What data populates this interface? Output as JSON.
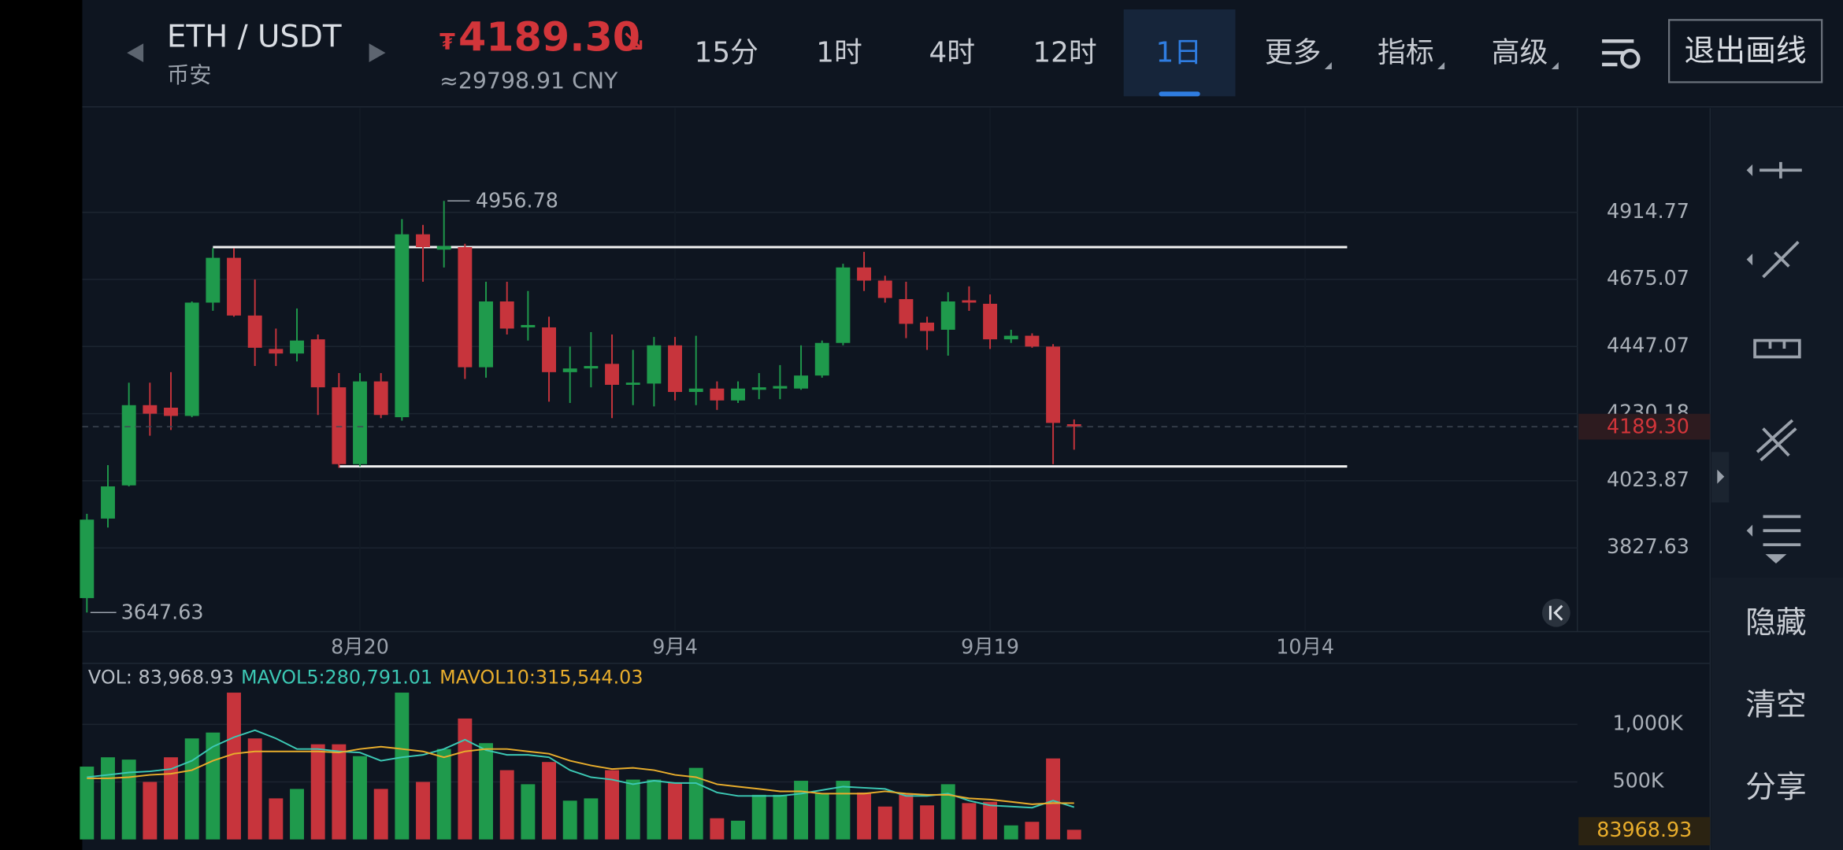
{
  "header": {
    "pair": "ETH / USDT",
    "exchange": "币安",
    "price_symbol": "₮",
    "price": "4189.30",
    "trend_arrow": "↘",
    "price_cny": "≈29798.91 CNY",
    "tabs": [
      "15分",
      "1时",
      "4时",
      "12时",
      "1日",
      "更多",
      "指标",
      "高级"
    ],
    "active_tab": 4,
    "exit_button": "退出画线"
  },
  "sidebar": {
    "buttons": [
      "隐藏",
      "清空",
      "分享"
    ]
  },
  "chart_data": [
    {
      "type": "candlestick",
      "log_scale": true,
      "grid": true,
      "up_color": "#1f9a4c",
      "down_color": "#c7343c",
      "open": [
        3687,
        3912,
        4010,
        4257,
        4249,
        4223,
        4595,
        4751,
        4551,
        4439,
        4424,
        4471,
        4314,
        4074,
        4333,
        4219,
        4835,
        4780,
        4789,
        4379,
        4599,
        4511,
        4511,
        4363,
        4375,
        4390,
        4322,
        4326,
        4451,
        4299,
        4310,
        4272,
        4306,
        4310,
        4310,
        4352,
        4459,
        4717,
        4671,
        4607,
        4527,
        4503,
        4603,
        4591,
        4471,
        4483,
        4447,
        4197
      ],
      "high": [
        3926,
        4071,
        4329,
        4329,
        4363,
        4599,
        4785,
        4785,
        4675,
        4507,
        4575,
        4487,
        4360,
        4360,
        4360,
        4890,
        4869,
        4956.78,
        4801,
        4667,
        4667,
        4635,
        4547,
        4447,
        4495,
        4487,
        4436,
        4479,
        4479,
        4483,
        4333,
        4333,
        4360,
        4386,
        4451,
        4467,
        4730,
        4772,
        4688,
        4667,
        4547,
        4631,
        4651,
        4623,
        4503,
        4491,
        4455,
        4212
      ],
      "low": [
        3647.63,
        3886,
        4007,
        4161,
        4179,
        4219,
        4567,
        4547,
        4383,
        4383,
        4398,
        4226,
        4063,
        4067,
        4216,
        4208,
        4667,
        4717,
        4341,
        4345,
        4487,
        4467,
        4268,
        4264,
        4314,
        4216,
        4257,
        4253,
        4272,
        4257,
        4242,
        4264,
        4276,
        4276,
        4306,
        4345,
        4451,
        4635,
        4595,
        4475,
        4436,
        4417,
        4567,
        4439,
        4459,
        4443,
        4074,
        4118
      ],
      "close": [
        3909,
        4007,
        4257,
        4230,
        4223,
        4595,
        4751,
        4551,
        4443,
        4424,
        4467,
        4314,
        4074,
        4333,
        4226,
        4835,
        4789,
        4793,
        4379,
        4599,
        4507,
        4519,
        4363,
        4375,
        4383,
        4322,
        4329,
        4451,
        4299,
        4310,
        4272,
        4310,
        4314,
        4318,
        4352,
        4459,
        4717,
        4671,
        4611,
        4523,
        4499,
        4599,
        4595,
        4471,
        4483,
        4447,
        4201,
        4189.3
      ],
      "last_price_label": "4189.30",
      "ylim": [
        3596,
        5312
      ],
      "yticks": [
        3827.63,
        4023.87,
        4230.18,
        4447.07,
        4675.07,
        4914.77
      ],
      "xlim": [
        -0.22,
        70.96
      ],
      "xticks": [
        {
          "value": 13,
          "label": "8月20"
        },
        {
          "value": 28,
          "label": "9月4"
        },
        {
          "value": 43,
          "label": "9月19"
        },
        {
          "value": 58,
          "label": "10月4"
        }
      ],
      "lines": [
        {
          "value": 4789,
          "x": [
            6,
            60
          ]
        },
        {
          "value": 4067,
          "x": [
            12,
            60
          ]
        }
      ]
    },
    {
      "type": "bar",
      "values": [
        633000,
        714000,
        694000,
        500000,
        714000,
        878000,
        929000,
        1276000,
        878000,
        357000,
        439000,
        827000,
        827000,
        724000,
        439000,
        1276000,
        500000,
        786000,
        1051000,
        837000,
        602000,
        480000,
        673000,
        337000,
        357000,
        602000,
        520000,
        520000,
        490000,
        622000,
        184000,
        163000,
        388000,
        388000,
        510000,
        398000,
        510000,
        408000,
        286000,
        398000,
        296000,
        480000,
        316000,
        327000,
        122000,
        153000,
        704000,
        83968.93
      ],
      "last_label": "83968.93",
      "legend": [
        "VOL: 83,968.93",
        "MAVOL5:280,791.01",
        "MAVOL10:315,544.03"
      ],
      "legend_colors": [
        "#b8bec6",
        "#3cc8b4",
        "#e8ad2c"
      ],
      "series": [
        {
          "name": "MAVOL5",
          "color": "#3cc8b4",
          "values": [
            541000,
            561000,
            582000,
            592000,
            612000,
            684000,
            806000,
            888000,
            949000,
            878000,
            786000,
            786000,
            765000,
            755000,
            684000,
            714000,
            735000,
            786000,
            867000,
            776000,
            735000,
            735000,
            714000,
            602000,
            541000,
            520000,
            480000,
            510000,
            490000,
            490000,
            408000,
            378000,
            378000,
            378000,
            398000,
            429000,
            459000,
            449000,
            439000,
            378000,
            378000,
            398000,
            337000,
            296000,
            286000,
            276000,
            337000,
            280791.01
          ]
        },
        {
          "name": "MAVOL10",
          "color": "#e8ad2c",
          "values": [
            531000,
            531000,
            541000,
            561000,
            571000,
            602000,
            684000,
            745000,
            765000,
            765000,
            765000,
            765000,
            755000,
            786000,
            806000,
            786000,
            765000,
            714000,
            765000,
            786000,
            786000,
            765000,
            745000,
            684000,
            643000,
            612000,
            622000,
            602000,
            561000,
            541000,
            480000,
            459000,
            439000,
            418000,
            418000,
            398000,
            398000,
            398000,
            418000,
            398000,
            388000,
            388000,
            357000,
            347000,
            327000,
            306000,
            316000,
            315544.03
          ]
        }
      ],
      "ylim": [
        0,
        1500000
      ],
      "yticks": [
        {
          "value": 500000,
          "label": "500K"
        },
        {
          "value": 1000000,
          "label": "1,000K"
        }
      ]
    }
  ]
}
